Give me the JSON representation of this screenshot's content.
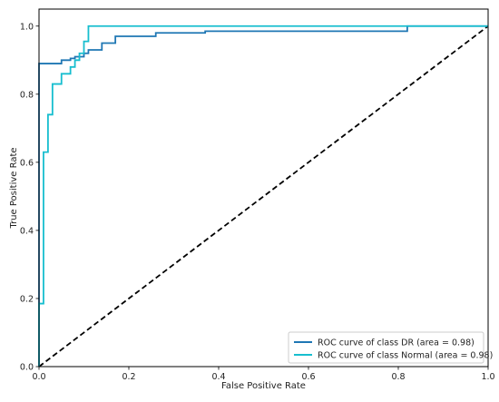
{
  "chart_data": {
    "type": "line",
    "title": "",
    "xlabel": "False Positive Rate",
    "ylabel": "True Positive Rate",
    "xlim": [
      0.0,
      1.0
    ],
    "ylim": [
      0.0,
      1.05
    ],
    "xticks": [
      "0.0",
      "0.2",
      "0.4",
      "0.6",
      "0.8",
      "1.0"
    ],
    "yticks": [
      "0.0",
      "0.2",
      "0.4",
      "0.6",
      "0.8",
      "1.0"
    ],
    "grid": false,
    "legend_position": "lower-right",
    "series": [
      {
        "name": "ROC curve of class DR (area = 0.98)",
        "color": "#1f77b4",
        "points": [
          [
            0.0,
            0.0
          ],
          [
            0.0,
            0.89
          ],
          [
            0.05,
            0.89
          ],
          [
            0.05,
            0.9
          ],
          [
            0.07,
            0.9
          ],
          [
            0.07,
            0.905
          ],
          [
            0.08,
            0.905
          ],
          [
            0.08,
            0.91
          ],
          [
            0.1,
            0.91
          ],
          [
            0.1,
            0.92
          ],
          [
            0.11,
            0.92
          ],
          [
            0.11,
            0.93
          ],
          [
            0.14,
            0.93
          ],
          [
            0.14,
            0.95
          ],
          [
            0.17,
            0.95
          ],
          [
            0.17,
            0.97
          ],
          [
            0.26,
            0.97
          ],
          [
            0.26,
            0.98
          ],
          [
            0.37,
            0.98
          ],
          [
            0.37,
            0.985
          ],
          [
            0.82,
            0.985
          ],
          [
            0.82,
            1.0
          ],
          [
            1.0,
            1.0
          ]
        ]
      },
      {
        "name": "ROC curve of class Normal (area = 0.98)",
        "color": "#17becf",
        "points": [
          [
            0.0,
            0.0
          ],
          [
            0.0,
            0.185
          ],
          [
            0.01,
            0.185
          ],
          [
            0.01,
            0.63
          ],
          [
            0.02,
            0.63
          ],
          [
            0.02,
            0.74
          ],
          [
            0.03,
            0.74
          ],
          [
            0.03,
            0.83
          ],
          [
            0.05,
            0.83
          ],
          [
            0.05,
            0.86
          ],
          [
            0.07,
            0.86
          ],
          [
            0.07,
            0.88
          ],
          [
            0.08,
            0.88
          ],
          [
            0.08,
            0.9
          ],
          [
            0.09,
            0.9
          ],
          [
            0.09,
            0.92
          ],
          [
            0.1,
            0.92
          ],
          [
            0.1,
            0.955
          ],
          [
            0.11,
            0.955
          ],
          [
            0.11,
            1.0
          ],
          [
            1.0,
            1.0
          ]
        ]
      }
    ],
    "reference_line": {
      "style": "dashed",
      "color": "#000000",
      "points": [
        [
          0.0,
          0.0
        ],
        [
          1.0,
          1.0
        ]
      ]
    }
  }
}
